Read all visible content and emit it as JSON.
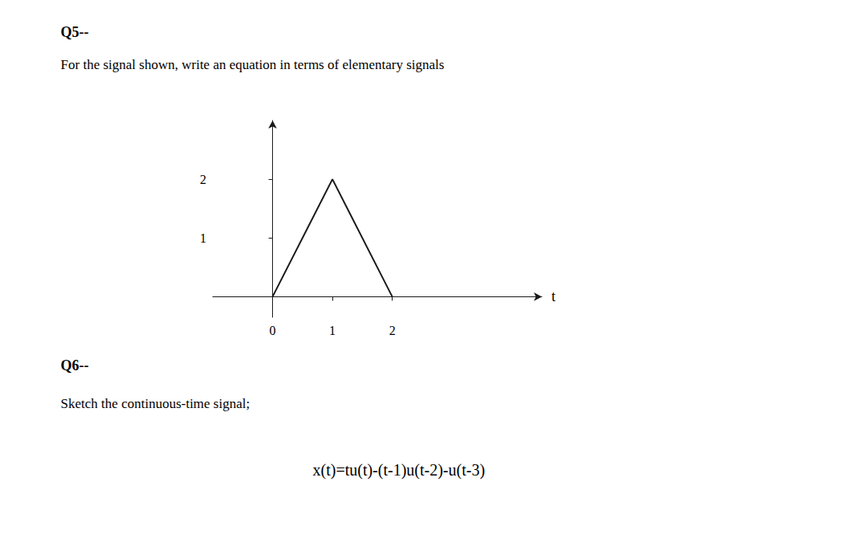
{
  "chart_data": {
    "type": "line",
    "x": [
      0,
      1,
      2
    ],
    "values": [
      0,
      2,
      0
    ],
    "color": "#1a1a1a",
    "xlim": [
      -1.0,
      4.5
    ],
    "xticks": [
      0,
      1,
      2
    ],
    "ylim": [
      -0.35,
      3.0
    ],
    "yticks": [
      1,
      2
    ],
    "xlabel": "t",
    "grid": false,
    "annotations": [
      "Q5--",
      "For the signal shown, write an equation in terms of elementary signals",
      "Q6--",
      "Sketch the continuous-time signal;",
      "x(t)=tu(t)-(t-1)u(t-2)-u(t-3)"
    ]
  }
}
